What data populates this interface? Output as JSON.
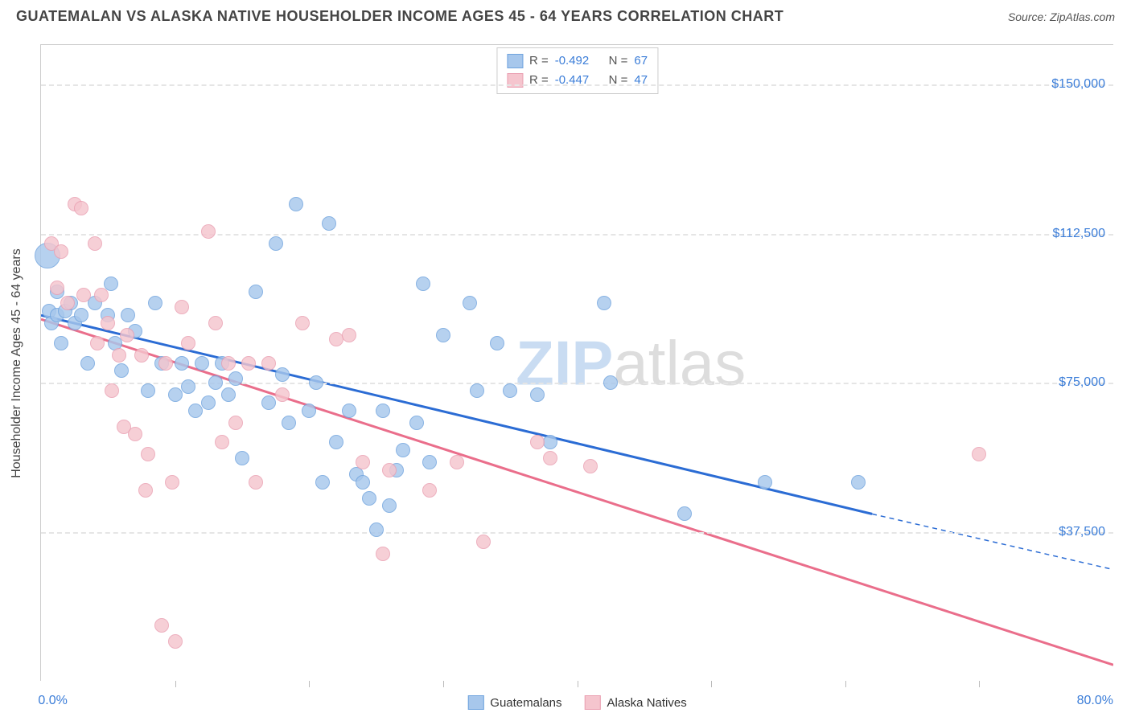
{
  "header": {
    "title": "GUATEMALAN VS ALASKA NATIVE HOUSEHOLDER INCOME AGES 45 - 64 YEARS CORRELATION CHART",
    "source": "Source: ZipAtlas.com"
  },
  "watermark": {
    "part1": "ZIP",
    "part2": "atlas"
  },
  "chart": {
    "type": "scatter",
    "y_axis_title": "Householder Income Ages 45 - 64 years",
    "x_range": [
      0,
      80
    ],
    "y_range": [
      0,
      160000
    ],
    "x_labels": {
      "min": "0.0%",
      "max": "80.0%"
    },
    "y_ticks": [
      {
        "value": 37500,
        "label": "$37,500"
      },
      {
        "value": 75000,
        "label": "$75,000"
      },
      {
        "value": 112500,
        "label": "$112,500"
      },
      {
        "value": 150000,
        "label": "$150,000"
      }
    ],
    "x_tick_step": 10,
    "grid_color": "#e5e5e5",
    "background_color": "#ffffff",
    "axis_label_color": "#3b7dd8",
    "axis_title_color": "#444444",
    "series": [
      {
        "name": "Guatemalans",
        "fill": "#a7c7ec",
        "stroke": "#6fa3de",
        "stats": {
          "R_label": "R =",
          "R_value": "-0.492",
          "N_label": "N =",
          "N_value": "67"
        },
        "points": [
          {
            "x": 0.5,
            "y": 107000,
            "r": 16
          },
          {
            "x": 0.6,
            "y": 93000
          },
          {
            "x": 0.8,
            "y": 90000
          },
          {
            "x": 1.2,
            "y": 92000
          },
          {
            "x": 1.5,
            "y": 85000
          },
          {
            "x": 1.2,
            "y": 98000
          },
          {
            "x": 1.8,
            "y": 93000
          },
          {
            "x": 2.2,
            "y": 95000
          },
          {
            "x": 2.5,
            "y": 90000
          },
          {
            "x": 3,
            "y": 92000
          },
          {
            "x": 3.5,
            "y": 80000
          },
          {
            "x": 4,
            "y": 95000
          },
          {
            "x": 5,
            "y": 92000
          },
          {
            "x": 5.2,
            "y": 100000
          },
          {
            "x": 5.5,
            "y": 85000
          },
          {
            "x": 6,
            "y": 78000
          },
          {
            "x": 6.5,
            "y": 92000
          },
          {
            "x": 7,
            "y": 88000
          },
          {
            "x": 8.5,
            "y": 95000
          },
          {
            "x": 8,
            "y": 73000
          },
          {
            "x": 9,
            "y": 80000
          },
          {
            "x": 10,
            "y": 72000
          },
          {
            "x": 10.5,
            "y": 80000
          },
          {
            "x": 11,
            "y": 74000
          },
          {
            "x": 11.5,
            "y": 68000
          },
          {
            "x": 12,
            "y": 80000
          },
          {
            "x": 12.5,
            "y": 70000
          },
          {
            "x": 13,
            "y": 75000
          },
          {
            "x": 13.5,
            "y": 80000
          },
          {
            "x": 14,
            "y": 72000
          },
          {
            "x": 14.5,
            "y": 76000
          },
          {
            "x": 15,
            "y": 56000
          },
          {
            "x": 16,
            "y": 98000
          },
          {
            "x": 17.5,
            "y": 110000
          },
          {
            "x": 17,
            "y": 70000
          },
          {
            "x": 18,
            "y": 77000
          },
          {
            "x": 18.5,
            "y": 65000
          },
          {
            "x": 19,
            "y": 120000
          },
          {
            "x": 20,
            "y": 68000
          },
          {
            "x": 20.5,
            "y": 75000
          },
          {
            "x": 21,
            "y": 50000
          },
          {
            "x": 21.5,
            "y": 115000
          },
          {
            "x": 22,
            "y": 60000
          },
          {
            "x": 23,
            "y": 68000
          },
          {
            "x": 23.5,
            "y": 52000
          },
          {
            "x": 24,
            "y": 50000
          },
          {
            "x": 24.5,
            "y": 46000
          },
          {
            "x": 25,
            "y": 38000
          },
          {
            "x": 25.5,
            "y": 68000
          },
          {
            "x": 26,
            "y": 44000
          },
          {
            "x": 26.5,
            "y": 53000
          },
          {
            "x": 27,
            "y": 58000
          },
          {
            "x": 28,
            "y": 65000
          },
          {
            "x": 28.5,
            "y": 100000
          },
          {
            "x": 29,
            "y": 55000
          },
          {
            "x": 30,
            "y": 87000
          },
          {
            "x": 32,
            "y": 95000
          },
          {
            "x": 32.5,
            "y": 73000
          },
          {
            "x": 34,
            "y": 85000
          },
          {
            "x": 35,
            "y": 73000
          },
          {
            "x": 37,
            "y": 72000
          },
          {
            "x": 38,
            "y": 60000
          },
          {
            "x": 42,
            "y": 95000
          },
          {
            "x": 42.5,
            "y": 75000
          },
          {
            "x": 48,
            "y": 42000
          },
          {
            "x": 54,
            "y": 50000
          },
          {
            "x": 61,
            "y": 50000
          }
        ],
        "trend": {
          "x1": 0,
          "y1": 92000,
          "x2": 62,
          "y2": 42000,
          "extend_to_x": 80,
          "extend_y": 28000,
          "color": "#2b6cd4",
          "width": 3
        }
      },
      {
        "name": "Alaska Natives",
        "fill": "#f5c5ce",
        "stroke": "#ea9fb1",
        "stats": {
          "R_label": "R =",
          "R_value": "-0.447",
          "N_label": "N =",
          "N_value": "47"
        },
        "points": [
          {
            "x": 0.8,
            "y": 110000
          },
          {
            "x": 1.2,
            "y": 99000
          },
          {
            "x": 1.5,
            "y": 108000
          },
          {
            "x": 2.5,
            "y": 120000
          },
          {
            "x": 2,
            "y": 95000
          },
          {
            "x": 3,
            "y": 119000
          },
          {
            "x": 3.2,
            "y": 97000
          },
          {
            "x": 4,
            "y": 110000
          },
          {
            "x": 4.5,
            "y": 97000
          },
          {
            "x": 4.2,
            "y": 85000
          },
          {
            "x": 5,
            "y": 90000
          },
          {
            "x": 5.3,
            "y": 73000
          },
          {
            "x": 5.8,
            "y": 82000
          },
          {
            "x": 6.4,
            "y": 87000
          },
          {
            "x": 6.2,
            "y": 64000
          },
          {
            "x": 7,
            "y": 62000
          },
          {
            "x": 7.5,
            "y": 82000
          },
          {
            "x": 7.8,
            "y": 48000
          },
          {
            "x": 8,
            "y": 57000
          },
          {
            "x": 9,
            "y": 14000
          },
          {
            "x": 9.3,
            "y": 80000
          },
          {
            "x": 9.8,
            "y": 50000
          },
          {
            "x": 10,
            "y": 10000
          },
          {
            "x": 10.5,
            "y": 94000
          },
          {
            "x": 11,
            "y": 85000
          },
          {
            "x": 12.5,
            "y": 113000
          },
          {
            "x": 13,
            "y": 90000
          },
          {
            "x": 13.5,
            "y": 60000
          },
          {
            "x": 14,
            "y": 80000
          },
          {
            "x": 14.5,
            "y": 65000
          },
          {
            "x": 15.5,
            "y": 80000
          },
          {
            "x": 16,
            "y": 50000
          },
          {
            "x": 17,
            "y": 80000
          },
          {
            "x": 18,
            "y": 72000
          },
          {
            "x": 19.5,
            "y": 90000
          },
          {
            "x": 22,
            "y": 86000
          },
          {
            "x": 23,
            "y": 87000
          },
          {
            "x": 24,
            "y": 55000
          },
          {
            "x": 25.5,
            "y": 32000
          },
          {
            "x": 26,
            "y": 53000
          },
          {
            "x": 29,
            "y": 48000
          },
          {
            "x": 31,
            "y": 55000
          },
          {
            "x": 33,
            "y": 35000
          },
          {
            "x": 37,
            "y": 60000
          },
          {
            "x": 38,
            "y": 56000
          },
          {
            "x": 41,
            "y": 54000
          },
          {
            "x": 70,
            "y": 57000
          }
        ],
        "trend": {
          "x1": 0,
          "y1": 91000,
          "x2": 80,
          "y2": 4000,
          "extend_to_x": 80,
          "extend_y": 4000,
          "color": "#ea6e8b",
          "width": 3
        }
      }
    ],
    "legend_labels": [
      "Guatemalans",
      "Alaska Natives"
    ]
  }
}
